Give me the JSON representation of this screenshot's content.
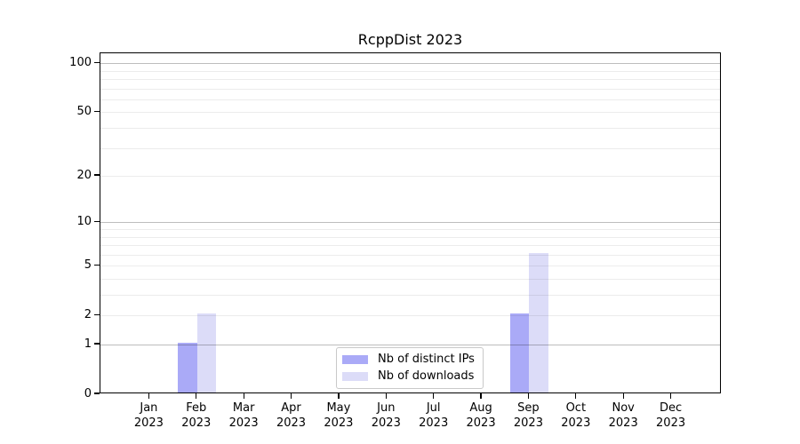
{
  "chart_data": {
    "type": "bar",
    "title": "RcppDist 2023",
    "xlabel": "",
    "ylabel": "",
    "yscale": "log1p",
    "ylim": [
      0,
      115
    ],
    "yticks": [
      0,
      1,
      2,
      5,
      10,
      20,
      50,
      100
    ],
    "grid": {
      "major_values": [
        1,
        10,
        100
      ],
      "minor_values": [
        2,
        3,
        4,
        5,
        6,
        7,
        8,
        9,
        20,
        30,
        40,
        50,
        60,
        70,
        80,
        90
      ],
      "major_color": "#bdbdbd",
      "minor_color": "#ececec"
    },
    "categories": [
      {
        "month": "Jan",
        "year": "2023"
      },
      {
        "month": "Feb",
        "year": "2023"
      },
      {
        "month": "Mar",
        "year": "2023"
      },
      {
        "month": "Apr",
        "year": "2023"
      },
      {
        "month": "May",
        "year": "2023"
      },
      {
        "month": "Jun",
        "year": "2023"
      },
      {
        "month": "Jul",
        "year": "2023"
      },
      {
        "month": "Aug",
        "year": "2023"
      },
      {
        "month": "Sep",
        "year": "2023"
      },
      {
        "month": "Oct",
        "year": "2023"
      },
      {
        "month": "Nov",
        "year": "2023"
      },
      {
        "month": "Dec",
        "year": "2023"
      }
    ],
    "series": [
      {
        "name": "Nb of distinct IPs",
        "color": "#aaaaf7",
        "values": [
          0,
          1,
          0,
          0,
          0,
          0,
          0,
          0,
          2,
          0,
          0,
          0
        ]
      },
      {
        "name": "Nb of downloads",
        "color": "#dcdcf8",
        "values": [
          0,
          2,
          0,
          0,
          0,
          0,
          0,
          0,
          6,
          0,
          0,
          0
        ]
      }
    ],
    "legend_position": "lower center",
    "axis_color": "#000000",
    "background_color": "#ffffff"
  }
}
